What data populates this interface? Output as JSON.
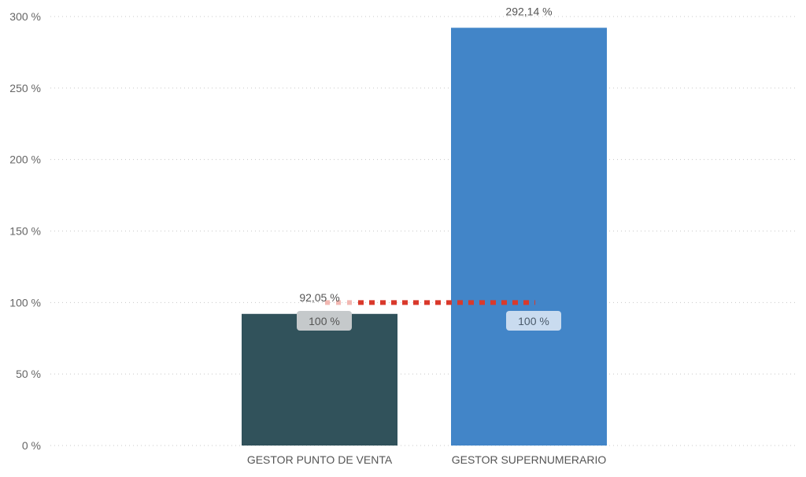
{
  "chart_data": {
    "type": "bar",
    "title": "",
    "xlabel": "",
    "ylabel": "",
    "categories": [
      "GESTOR PUNTO DE VENTA",
      "GESTOR SUPERNUMERARIO"
    ],
    "values": [
      92.05,
      292.14
    ],
    "value_labels": [
      "92,05 %",
      "292,14 %"
    ],
    "bar_colors": [
      "#31525b",
      "#4285c8"
    ],
    "ylim": [
      0,
      300
    ],
    "yticks": [
      0,
      50,
      100,
      150,
      200,
      250,
      300
    ],
    "ytick_labels": [
      "0 %",
      "50 %",
      "100 %",
      "150 %",
      "200 %",
      "250 %",
      "300 %"
    ],
    "grid": true,
    "target": {
      "value": 100,
      "color": "#d9392b",
      "labels": [
        "100 %",
        "100 %"
      ]
    }
  }
}
